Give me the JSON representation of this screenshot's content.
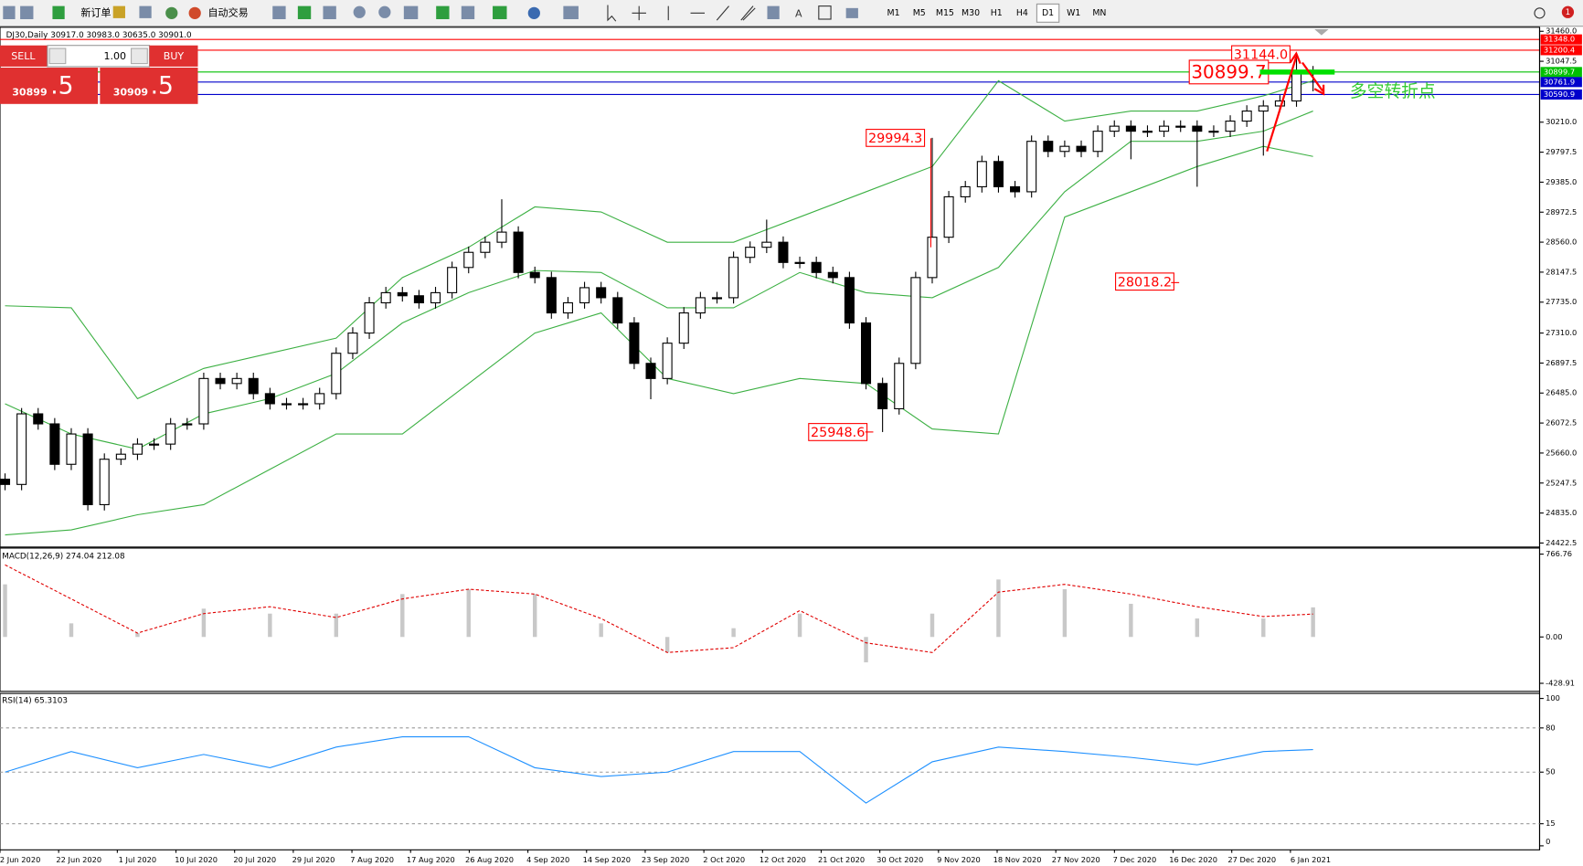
{
  "toolbar": {
    "new_order": "新订单",
    "auto_trading": "自动交易",
    "timeframes": [
      "M1",
      "M5",
      "M15",
      "M30",
      "H1",
      "H4",
      "D1",
      "W1",
      "MN"
    ],
    "notifications": 1
  },
  "trade_panel": {
    "sell": "SELL",
    "lots": "1.00",
    "buy": "BUY",
    "bid": {
      "big": "30899",
      "small": ".5"
    },
    "ask": {
      "big": "30909",
      "small": ".5"
    }
  },
  "chart": {
    "header": "DJ30,Daily  30917.0 30983.0 30635.0 30901.0",
    "ylim": [
      24422.5,
      31460
    ],
    "yticks": [
      {
        "value": 31460,
        "label": "31460.0"
      },
      31047.5,
      {
        "value": 30210,
        "label": "30210.0"
      },
      29797.5,
      {
        "value": 29385,
        "label": "29385.0"
      },
      28972.5,
      {
        "value": 28560,
        "label": "28560.0"
      },
      28147.5,
      {
        "value": 27735,
        "label": "27735.0"
      },
      {
        "value": 27310,
        "label": "27310.0"
      },
      26897.5,
      {
        "value": 26485,
        "label": "26485.0"
      },
      26072.5,
      {
        "value": 25660,
        "label": "25660.0"
      },
      25247.5,
      {
        "value": 24835,
        "label": "24835.0"
      },
      24422.5
    ],
    "price_lines": [
      {
        "value": 31348,
        "label": "31348.0",
        "color": "#ff0000"
      },
      {
        "value": 31200.4,
        "label": "31200.4",
        "color": "#ff0000"
      },
      {
        "value": 30899.7,
        "label": "30899.7",
        "color": "#00c000"
      },
      {
        "value": 30761.9,
        "label": "30761.9",
        "color": "#0000cc"
      },
      {
        "value": 30590.9,
        "label": "30590.9",
        "color": "#0000cc"
      }
    ],
    "candles": [
      [
        25300,
        25380,
        25148,
        25228
      ],
      [
        25228,
        26279,
        25148,
        26199
      ],
      [
        26199,
        26279,
        25981,
        26061
      ],
      [
        26061,
        26141,
        25425,
        25505
      ],
      [
        25505,
        26002,
        25425,
        25922
      ],
      [
        25922,
        26002,
        24870,
        24950
      ],
      [
        24950,
        25655,
        24870,
        25575
      ],
      [
        25575,
        25724,
        25495,
        25644
      ],
      [
        25644,
        25863,
        25564,
        25783
      ],
      [
        25783,
        25863,
        25703,
        25783
      ],
      [
        25783,
        26141,
        25703,
        26061
      ],
      [
        26061,
        26141,
        25981,
        26061
      ],
      [
        26061,
        26765,
        25981,
        26685
      ],
      [
        26685,
        26765,
        26536,
        26616
      ],
      [
        26616,
        26765,
        26536,
        26685
      ],
      [
        26685,
        26765,
        26397,
        26477
      ],
      [
        26477,
        26557,
        26258,
        26338
      ],
      [
        26338,
        26418,
        26258,
        26338
      ],
      [
        26338,
        26418,
        26258,
        26338
      ],
      [
        26338,
        26557,
        26258,
        26477
      ],
      [
        26477,
        27112,
        26397,
        27032
      ],
      [
        27032,
        27390,
        26952,
        27310
      ],
      [
        27310,
        27806,
        27230,
        27726
      ],
      [
        27726,
        27945,
        27646,
        27865
      ],
      [
        27865,
        27945,
        27743,
        27823
      ],
      [
        27823,
        27903,
        27646,
        27726
      ],
      [
        27726,
        27945,
        27646,
        27865
      ],
      [
        27865,
        28292,
        27785,
        28212
      ],
      [
        28212,
        28500,
        28132,
        28420
      ],
      [
        28420,
        28639,
        28340,
        28559
      ],
      [
        28559,
        29150,
        28479,
        28698
      ],
      [
        28698,
        28778,
        28063,
        28143
      ],
      [
        28143,
        28223,
        27993,
        28073
      ],
      [
        28073,
        28153,
        27507,
        27587
      ],
      [
        27587,
        27806,
        27507,
        27726
      ],
      [
        27726,
        28014,
        27646,
        27934
      ],
      [
        27934,
        28014,
        27716,
        27796
      ],
      [
        27796,
        27876,
        27369,
        27449
      ],
      [
        27449,
        27529,
        26813,
        26893
      ],
      [
        26893,
        26973,
        26400,
        26685
      ],
      [
        26685,
        27251,
        26605,
        27171
      ],
      [
        27171,
        27667,
        27091,
        27587
      ],
      [
        27587,
        27876,
        27507,
        27796
      ],
      [
        27796,
        27876,
        27716,
        27796
      ],
      [
        27796,
        28431,
        27716,
        28351
      ],
      [
        28351,
        28570,
        28271,
        28490
      ],
      [
        28490,
        28870,
        28410,
        28559
      ],
      [
        28559,
        28639,
        28201,
        28281
      ],
      [
        28281,
        28361,
        28201,
        28281
      ],
      [
        28281,
        28361,
        28063,
        28143
      ],
      [
        28143,
        28223,
        27993,
        28073
      ],
      [
        28073,
        28153,
        27369,
        27449
      ],
      [
        27449,
        27529,
        26536,
        26616
      ],
      [
        26616,
        26696,
        25948.6,
        26269
      ],
      [
        26269,
        26973,
        26189,
        26893
      ],
      [
        26893,
        28153,
        26813,
        28073
      ],
      [
        28073,
        29994.3,
        27993,
        28628
      ],
      [
        28628,
        29264,
        28548,
        29184
      ],
      [
        29184,
        29402,
        29104,
        29322
      ],
      [
        29322,
        29749,
        29242,
        29669
      ],
      [
        29669,
        29749,
        29242,
        29322
      ],
      [
        29322,
        29402,
        29173,
        29253
      ],
      [
        29253,
        30027,
        29173,
        29947
      ],
      [
        29947,
        30027,
        29728,
        29808
      ],
      [
        29808,
        29958,
        29728,
        29878
      ],
      [
        29878,
        29958,
        29728,
        29808
      ],
      [
        29808,
        30166,
        29728,
        30086
      ],
      [
        30086,
        30235,
        30006,
        30155
      ],
      [
        30155,
        30235,
        29700,
        30086
      ],
      [
        30086,
        30166,
        30006,
        30086
      ],
      [
        30086,
        30235,
        30006,
        30155
      ],
      [
        30155,
        30235,
        30075,
        30155
      ],
      [
        30155,
        30235,
        29322,
        30086
      ],
      [
        30086,
        30166,
        30006,
        30086
      ],
      [
        30086,
        30305,
        30006,
        30225
      ],
      [
        30225,
        30443,
        30145,
        30363
      ],
      [
        30363,
        30513,
        29750,
        30433
      ],
      [
        30433,
        30582,
        30353,
        30502
      ],
      [
        30502,
        31144,
        30422,
        30891
      ],
      [
        30917,
        30983,
        30635,
        30901
      ]
    ],
    "bollinger": {
      "x": [
        0,
        4,
        8,
        12,
        16,
        20,
        24,
        28,
        32,
        36,
        40,
        44,
        48,
        52,
        56,
        60,
        64,
        68,
        72,
        76,
        79
      ],
      "upper": [
        27685,
        27657,
        26408,
        26824,
        27032,
        27240,
        28073,
        28490,
        29045,
        28975,
        28559,
        28559,
        28906,
        29253,
        29600,
        30780,
        30225,
        30363,
        30363,
        30572,
        30780
      ],
      "middle": [
        26338,
        25922,
        25714,
        26199,
        26408,
        26755,
        27449,
        27865,
        28170,
        28143,
        27657,
        27657,
        28143,
        27865,
        27796,
        28212,
        29253,
        29947,
        29947,
        30086,
        30363
      ],
      "lower": [
        24534,
        24603,
        24811,
        24950,
        25436,
        25922,
        25922,
        26616,
        27310,
        27587,
        26685,
        26477,
        26685,
        26616,
        25991,
        25922,
        28906,
        29253,
        29600,
        29878,
        29739
      ]
    },
    "annotations": [
      {
        "value": 31144,
        "label": "31144.0"
      },
      30899.7,
      29994.3,
      28018.2,
      25948.6
    ],
    "note": "多空转折点",
    "dates": [
      "2 Jun 2020",
      "22 Jun 2020",
      "1 Jul 2020",
      "10 Jul 2020",
      "20 Jul 2020",
      "29 Jul 2020",
      "7 Aug 2020",
      "17 Aug 2020",
      "26 Aug 2020",
      "4 Sep 2020",
      "14 Sep 2020",
      "23 Sep 2020",
      "2 Oct 2020",
      "12 Oct 2020",
      "21 Oct 2020",
      "30 Oct 2020",
      "9 Nov 2020",
      "18 Nov 2020",
      "27 Nov 2020",
      "7 Dec 2020",
      "16 Dec 2020",
      "27 Dec 2020",
      "6 Jan 2021"
    ]
  },
  "macd": {
    "label": "MACD(12,26,9) 274.04 212.08",
    "ylim": [
      -428.91,
      766.76
    ],
    "yticks": [
      766.76,
      {
        "value": 0,
        "label": "0.00"
      },
      -428.91
    ],
    "x": [
      0,
      4,
      8,
      12,
      16,
      20,
      24,
      28,
      32,
      36,
      40,
      44,
      48,
      52,
      56,
      60,
      64,
      68,
      72,
      76,
      79
    ],
    "histogram": [
      487,
      126,
      36,
      262,
      216,
      216,
      397,
      442,
      397,
      126,
      -144,
      81,
      216,
      -235,
      216,
      532,
      442,
      307,
      171,
      171,
      274.04
    ],
    "signal": [
      667,
      352,
      36,
      216,
      280,
      180,
      352,
      442,
      397,
      171,
      -144,
      -99,
      244,
      -54,
      -144,
      415,
      487,
      397,
      280,
      189,
      212.08
    ]
  },
  "rsi": {
    "label": "RSI(14) 65.3103",
    "ylim": [
      0,
      100
    ],
    "yticks": [
      100,
      80,
      50,
      15,
      0
    ],
    "levels": [
      80,
      50,
      15
    ],
    "x": [
      0,
      4,
      8,
      12,
      16,
      20,
      24,
      28,
      32,
      36,
      40,
      44,
      48,
      52,
      56,
      60,
      64,
      68,
      72,
      76,
      79
    ],
    "values": [
      50,
      64,
      53,
      62,
      53,
      67,
      74,
      74,
      53,
      47,
      50,
      64,
      64,
      29,
      57,
      67,
      64,
      60,
      55,
      64,
      65.3103
    ]
  }
}
